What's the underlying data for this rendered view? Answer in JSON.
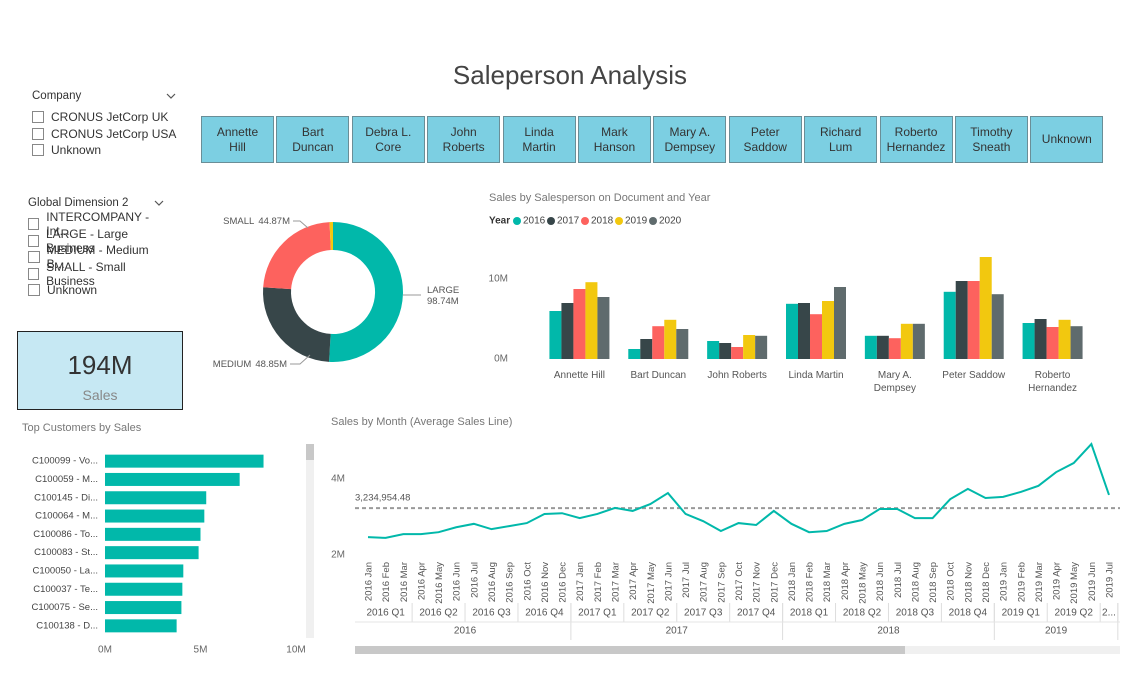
{
  "title": "Saleperson Analysis",
  "slicers": [
    {
      "title": "Company",
      "items": [
        "CRONUS JetCorp UK",
        "CRONUS JetCorp USA",
        "Unknown"
      ]
    },
    {
      "title": "Global Dimension 2",
      "items": [
        "INTERCOMPANY - Int...",
        "LARGE - Large Business",
        "MEDIUM - Medium B...",
        "SMALL - Small Business",
        "Unknown"
      ]
    }
  ],
  "salesperson_buttons": [
    "Annette Hill",
    "Bart Duncan",
    "Debra L. Core",
    "John Roberts",
    "Linda Martin",
    "Mark Hanson",
    "Mary A. Dempsey",
    "Peter Saddow",
    "Richard Lum",
    "Roberto Hernandez",
    "Timothy Sneath",
    "Unknown"
  ],
  "card": {
    "value": "194M",
    "label": "Sales"
  },
  "chart_data": [
    {
      "type": "donut",
      "categories": [
        "LARGE",
        "MEDIUM",
        "SMALL",
        null
      ],
      "values": [
        98.74,
        48.85,
        44.87,
        1.54
      ],
      "value_labels": [
        "98.74M",
        "48.85M",
        "44.87M",
        null
      ],
      "colors": [
        "#01B8AA",
        "#374649",
        "#FD625E",
        "#F2C80F"
      ]
    },
    {
      "type": "bar",
      "title": "Sales by Salesperson on Document and Year",
      "legend_title": "Year",
      "legend": "top-left",
      "categories": [
        "Annette Hill",
        "Bart Duncan",
        "John Roberts",
        "Linda Martin",
        "Mary A. Dempsey",
        "Peter Saddow",
        "Roberto Hernandez"
      ],
      "series": [
        {
          "name": "2016",
          "color": "#01B8AA",
          "values": [
            6.0,
            1.25,
            2.25,
            6.9,
            2.9,
            8.4,
            4.5
          ]
        },
        {
          "name": "2017",
          "color": "#374649",
          "values": [
            7.0,
            2.5,
            2.0,
            7.0,
            2.9,
            9.75,
            5.0
          ]
        },
        {
          "name": "2018",
          "color": "#FD625E",
          "values": [
            8.75,
            4.1,
            1.5,
            5.6,
            2.6,
            9.75,
            4.0
          ]
        },
        {
          "name": "2019",
          "color": "#F2C80F",
          "values": [
            9.6,
            4.9,
            3.0,
            7.25,
            4.4,
            12.75,
            4.9
          ]
        },
        {
          "name": "2020",
          "color": "#5F6B6D",
          "values": [
            7.75,
            3.75,
            2.9,
            9.0,
            4.4,
            8.1,
            4.1
          ]
        }
      ],
      "ylim": [
        0,
        14
      ],
      "yticks": [
        {
          "value": 0,
          "label": "0M"
        },
        {
          "value": 10,
          "label": "10M"
        }
      ]
    },
    {
      "type": "hbar",
      "title": "Top Customers by Sales",
      "categories": [
        "C100099 - Vo...",
        "C100059 - M...",
        "C100145 - Di...",
        "C100064 - M...",
        "C100086 - To...",
        "C100083 - St...",
        "C100050 - La...",
        "C100037 - Te...",
        "C100075 - Se...",
        "C100138 - D..."
      ],
      "values": [
        8.3,
        7.05,
        5.3,
        5.2,
        5.0,
        4.9,
        4.1,
        4.05,
        4.0,
        3.75
      ],
      "color": "#01B8AA",
      "xlim": [
        0,
        10
      ],
      "xticks": [
        {
          "value": 0,
          "label": "0M"
        },
        {
          "value": 5,
          "label": "5M"
        },
        {
          "value": 10,
          "label": "10M"
        }
      ]
    },
    {
      "type": "line",
      "title": "Sales by Month (Average Sales Line)",
      "x": [
        "2016 Jan",
        "2016 Feb",
        "2016 Mar",
        "2016 Apr",
        "2016 May",
        "2016 Jun",
        "2016 Jul",
        "2016 Aug",
        "2016 Sep",
        "2016 Oct",
        "2016 Nov",
        "2016 Dec",
        "2017 Jan",
        "2017 Feb",
        "2017 Mar",
        "2017 Apr",
        "2017 May",
        "2017 Jun",
        "2017 Jul",
        "2017 Aug",
        "2017 Sep",
        "2017 Oct",
        "2017 Nov",
        "2017 Dec",
        "2018 Jan",
        "2018 Feb",
        "2018 Mar",
        "2018 Apr",
        "2018 May",
        "2018 Jun",
        "2018 Jul",
        "2018 Aug",
        "2018 Sep",
        "2018 Oct",
        "2018 Nov",
        "2018 Dec",
        "2019 Jan",
        "2019 Feb",
        "2019 Mar",
        "2019 Apr",
        "2019 May",
        "2019 Jun",
        "2019 Jul"
      ],
      "quarters": [
        "2016 Q1",
        "2016 Q2",
        "2016 Q3",
        "2016 Q4",
        "2017 Q1",
        "2017 Q2",
        "2017 Q3",
        "2017 Q4",
        "2018 Q1",
        "2018 Q2",
        "2018 Q3",
        "2018 Q4",
        "2019 Q1",
        "2019 Q2",
        "2..."
      ],
      "years": [
        "2016",
        "2017",
        "2018",
        "2019"
      ],
      "values": [
        2.47,
        2.45,
        2.55,
        2.55,
        2.6,
        2.73,
        2.82,
        2.68,
        2.76,
        2.84,
        3.08,
        3.1,
        2.97,
        3.08,
        3.24,
        3.16,
        3.34,
        3.63,
        3.08,
        2.89,
        2.63,
        2.84,
        2.79,
        3.16,
        2.82,
        2.6,
        2.63,
        2.82,
        2.92,
        3.21,
        3.21,
        2.97,
        2.97,
        3.47,
        3.74,
        3.5,
        3.53,
        3.66,
        3.82,
        4.18,
        4.42,
        4.92,
        3.58
      ],
      "color": "#01B8AA",
      "average": 3.23495448,
      "average_label": "3,234,954.48",
      "ylim": [
        1.75,
        5
      ],
      "yticks": [
        {
          "value": 2,
          "label": "2M"
        },
        {
          "value": 4,
          "label": "4M"
        }
      ]
    }
  ]
}
